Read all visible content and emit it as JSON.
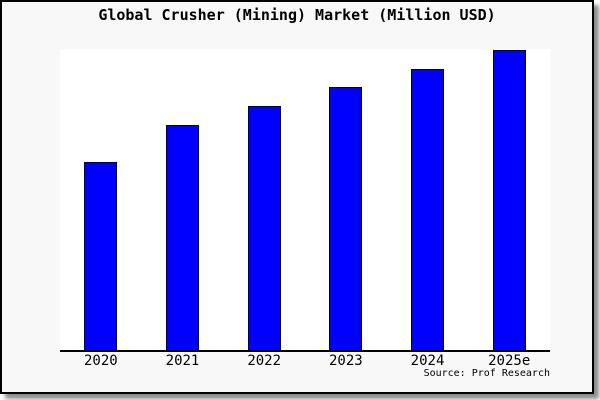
{
  "title": "Global Crusher (Mining) Market (Million USD)",
  "source": "Source: Prof Research",
  "colors": {
    "bar_fill": "#0000ff",
    "bar_border": "#000000",
    "figure_bg": "#f8f8f8",
    "plot_bg": "#ffffff",
    "axis": "#000000",
    "text": "#000000"
  },
  "chart_data": {
    "type": "bar",
    "categories": [
      "2020",
      "2021",
      "2022",
      "2023",
      "2024",
      "2025e"
    ],
    "values": [
      62.7,
      75.0,
      81.3,
      87.7,
      93.7,
      100.0
    ],
    "value_unit": "percent of tallest bar (y-axis has no visible labels)",
    "title": "Global Crusher (Mining) Market (Million USD)",
    "xlabel": "",
    "ylabel": "",
    "ylim": [
      0,
      100
    ],
    "grid": false,
    "legend": null,
    "axes_visible": {
      "bottom": true,
      "left": false,
      "top": false,
      "right": false
    },
    "source_note": "Source: Prof Research"
  }
}
